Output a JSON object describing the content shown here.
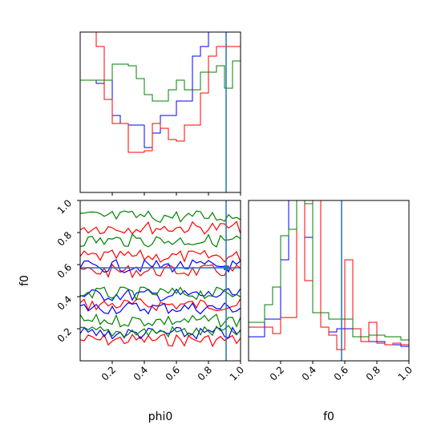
{
  "colors": {
    "series": [
      "#0000ff",
      "#ff0000",
      "#008000"
    ],
    "truth": "#1f77b4",
    "frame": "#000000"
  },
  "chart_data": [
    {
      "type": "histogram",
      "panel": "marginal-phi0",
      "xlim": [
        0,
        1
      ],
      "x_ticks": [
        0.2,
        0.4,
        0.6,
        0.8,
        1.0
      ],
      "truth": 0.91,
      "bin_edges": [
        0.0,
        0.05,
        0.1,
        0.15,
        0.2,
        0.25,
        0.3,
        0.35,
        0.4,
        0.45,
        0.5,
        0.55,
        0.6,
        0.65,
        0.7,
        0.75,
        0.8,
        0.85,
        0.9,
        0.95,
        1.0
      ],
      "series": [
        {
          "color": "#0000ff",
          "values": [
            0.7,
            0.7,
            0.68,
            0.7,
            0.48,
            0.43,
            0.42,
            0.42,
            0.28,
            0.37,
            0.48,
            0.48,
            0.57,
            0.57,
            0.85,
            0.91,
            1.1,
            1.1,
            1.1,
            1.1
          ]
        },
        {
          "color": "#ff0000",
          "values": [
            1.1,
            1.1,
            0.91,
            0.58,
            0.43,
            0.43,
            0.25,
            0.25,
            0.26,
            0.43,
            0.4,
            0.33,
            0.32,
            0.42,
            0.42,
            0.62,
            0.85,
            0.91,
            0.91,
            0.91
          ]
        },
        {
          "color": "#008000",
          "values": [
            0.7,
            0.7,
            0.7,
            0.7,
            0.8,
            0.8,
            0.79,
            0.71,
            0.61,
            0.57,
            0.57,
            0.64,
            0.7,
            0.64,
            0.64,
            0.75,
            0.75,
            0.79,
            0.65,
            0.82
          ]
        }
      ]
    },
    {
      "type": "contour",
      "panel": "phi0-vs-f0",
      "xlabel": "phi0",
      "ylabel": "f0",
      "xlim": [
        0,
        1
      ],
      "ylim": [
        0,
        1
      ],
      "x_ticks": [
        0.2,
        0.4,
        0.6,
        0.8,
        1.0
      ],
      "y_ticks": [
        0.2,
        0.4,
        0.6,
        0.8,
        1.0
      ],
      "truth": {
        "x": 0.91,
        "y": 0.58
      },
      "series": [
        {
          "color": "#ff0000",
          "levels": [
            0.13,
            0.35,
            0.56,
            0.65,
            0.83
          ]
        },
        {
          "color": "#0000ff",
          "levels": [
            0.17,
            0.33,
            0.41,
            0.59
          ]
        },
        {
          "color": "#008000",
          "levels": [
            0.18,
            0.25,
            0.42,
            0.75,
            0.9
          ]
        }
      ]
    },
    {
      "type": "histogram",
      "panel": "marginal-f0",
      "xlabel": "f0",
      "xlim": [
        0,
        1
      ],
      "x_ticks": [
        0.2,
        0.4,
        0.6,
        0.8,
        1.0
      ],
      "truth": 0.58,
      "bin_edges": [
        0.0,
        0.05,
        0.1,
        0.15,
        0.2,
        0.25,
        0.3,
        0.35,
        0.4,
        0.45,
        0.5,
        0.55,
        0.6,
        0.65,
        0.7,
        0.75,
        0.8,
        0.85,
        0.9,
        0.95,
        1.0
      ],
      "series": [
        {
          "color": "#0000ff",
          "values": [
            0.15,
            0.15,
            0.26,
            0.26,
            0.63,
            1.2,
            1.2,
            0.77,
            0.3,
            0.21,
            0.18,
            0.2,
            0.2,
            0.15,
            0.12,
            0.12,
            0.12,
            0.1,
            0.1,
            0.09
          ]
        },
        {
          "color": "#ff0000",
          "values": [
            0.21,
            0.21,
            0.21,
            0.17,
            0.27,
            0.27,
            1.2,
            0.5,
            1.2,
            0.21,
            0.16,
            0.07,
            0.63,
            0.2,
            0.12,
            0.24,
            0.11,
            0.1,
            0.11,
            0.1
          ]
        },
        {
          "color": "#008000",
          "values": [
            0.24,
            0.24,
            0.35,
            0.46,
            0.78,
            0.82,
            1.2,
            0.98,
            0.3,
            0.3,
            0.26,
            0.26,
            0.26,
            0.15,
            0.15,
            0.16,
            0.16,
            0.15,
            0.15,
            0.13
          ]
        }
      ]
    }
  ]
}
